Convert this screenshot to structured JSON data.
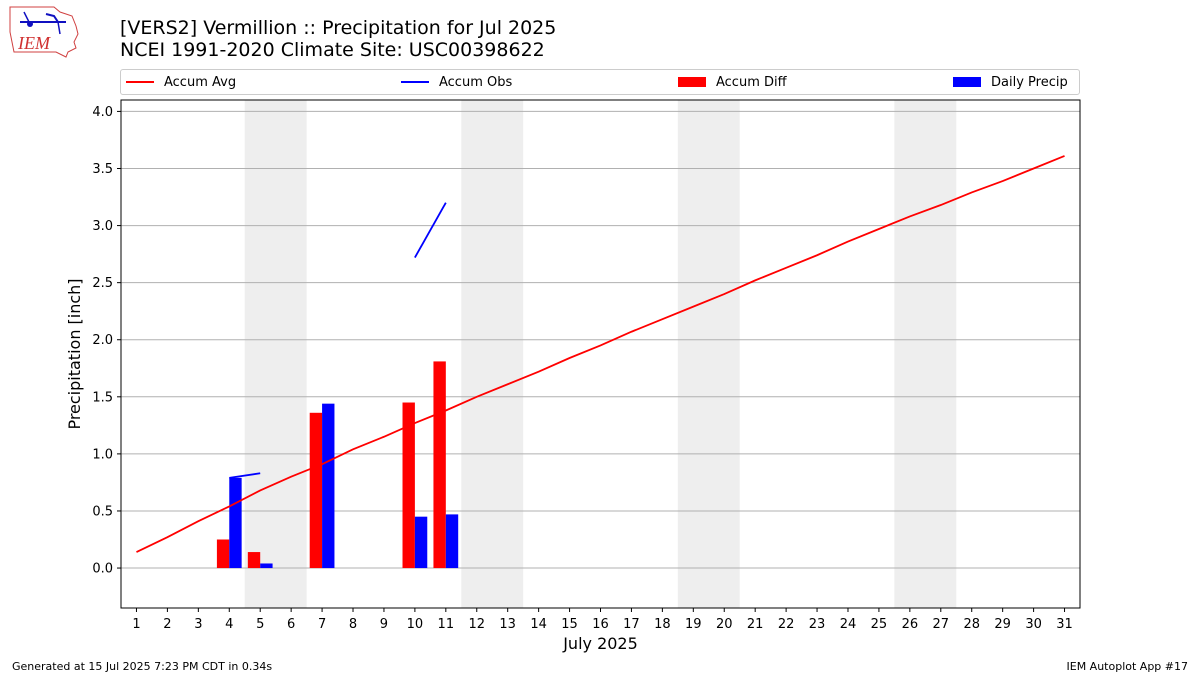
{
  "header": {
    "title_line1": "[VERS2] Vermillion :: Precipitation for Jul 2025",
    "title_line2": "NCEI 1991-2020 Climate Site: USC00398622",
    "logo_text": "IEM"
  },
  "footer": {
    "left": "Generated at 15 Jul 2025 7:23 PM CDT in 0.34s",
    "right": "IEM Autoplot App #17"
  },
  "colors": {
    "accum_avg": "#ff0000",
    "accum_obs": "#0000ff",
    "accum_diff": "#ff0000",
    "daily_precip": "#0000ff",
    "weekend_band": "#eeeeee",
    "grid": "#b0b0b0"
  },
  "chart_data": {
    "type": "bar",
    "xlabel": "July 2025",
    "ylabel": "Precipitation [inch]",
    "xlim": [
      0.5,
      31.5
    ],
    "ylim": [
      -0.35,
      4.1
    ],
    "x_ticks": [
      "1",
      "2",
      "3",
      "4",
      "5",
      "6",
      "7",
      "8",
      "9",
      "10",
      "11",
      "12",
      "13",
      "14",
      "15",
      "16",
      "17",
      "18",
      "19",
      "20",
      "21",
      "22",
      "23",
      "24",
      "25",
      "26",
      "27",
      "28",
      "29",
      "30",
      "31"
    ],
    "y_ticks": [
      "0.0",
      "0.5",
      "1.0",
      "1.5",
      "2.0",
      "2.5",
      "3.0",
      "3.5",
      "4.0"
    ],
    "grid": "horizontal",
    "legend_position": "top",
    "weekend_bands": [
      [
        4.5,
        6.5
      ],
      [
        11.5,
        13.5
      ],
      [
        18.5,
        20.5
      ],
      [
        25.5,
        27.5
      ]
    ],
    "series": [
      {
        "name": "Accum Avg",
        "kind": "line",
        "x": [
          1,
          2,
          3,
          4,
          5,
          6,
          7,
          8,
          9,
          10,
          11,
          12,
          13,
          14,
          15,
          16,
          17,
          18,
          19,
          20,
          21,
          22,
          23,
          24,
          25,
          26,
          27,
          28,
          29,
          30,
          31
        ],
        "values": [
          0.14,
          0.27,
          0.41,
          0.54,
          0.68,
          0.8,
          0.91,
          1.04,
          1.15,
          1.27,
          1.38,
          1.5,
          1.61,
          1.72,
          1.84,
          1.95,
          2.07,
          2.18,
          2.29,
          2.4,
          2.52,
          2.63,
          2.74,
          2.86,
          2.97,
          3.08,
          3.18,
          3.29,
          3.39,
          3.5,
          3.61
        ]
      },
      {
        "name": "Accum Obs",
        "kind": "line",
        "segments": [
          {
            "x": [
              4,
              5
            ],
            "values": [
              0.79,
              0.83
            ]
          },
          {
            "x": [
              10,
              11
            ],
            "values": [
              2.72,
              3.2
            ]
          }
        ]
      },
      {
        "name": "Accum Diff",
        "kind": "bar",
        "x": [
          4,
          5,
          7,
          10,
          11
        ],
        "values": [
          0.25,
          0.14,
          1.36,
          1.45,
          1.81
        ]
      },
      {
        "name": "Daily Precip",
        "kind": "bar",
        "x": [
          4,
          5,
          7,
          10,
          11
        ],
        "values": [
          0.79,
          0.04,
          1.44,
          0.45,
          0.47
        ]
      }
    ]
  }
}
